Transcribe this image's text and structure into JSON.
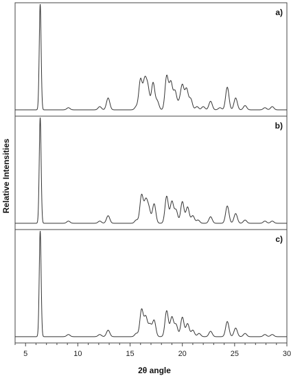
{
  "chart_data": {
    "type": "line",
    "xlabel": "2θ angle",
    "ylabel": "Relative Intensities",
    "xlim": [
      4,
      30
    ],
    "x_ticks": [
      5,
      10,
      15,
      20,
      25,
      30
    ],
    "x_tick_labels": [
      "5",
      "10",
      "15",
      "20",
      "25",
      "30"
    ],
    "grid": false,
    "legend": "none",
    "line_color": "#333333",
    "panels": [
      {
        "label": "a)",
        "ylim": [
          0,
          100
        ],
        "baseline": 2,
        "peaks": [
          {
            "x": 6.4,
            "y": 100
          },
          {
            "x": 9.1,
            "y": 4
          },
          {
            "x": 12.1,
            "y": 5
          },
          {
            "x": 12.9,
            "y": 13
          },
          {
            "x": 15.6,
            "y": 5
          },
          {
            "x": 16.0,
            "y": 30
          },
          {
            "x": 16.4,
            "y": 28
          },
          {
            "x": 16.7,
            "y": 22
          },
          {
            "x": 17.2,
            "y": 27
          },
          {
            "x": 17.6,
            "y": 10
          },
          {
            "x": 18.5,
            "y": 33
          },
          {
            "x": 18.9,
            "y": 27
          },
          {
            "x": 19.3,
            "y": 19
          },
          {
            "x": 19.7,
            "y": 8
          },
          {
            "x": 20.0,
            "y": 24
          },
          {
            "x": 20.4,
            "y": 21
          },
          {
            "x": 20.8,
            "y": 12
          },
          {
            "x": 21.4,
            "y": 5
          },
          {
            "x": 22.0,
            "y": 5
          },
          {
            "x": 22.7,
            "y": 10
          },
          {
            "x": 23.6,
            "y": 4
          },
          {
            "x": 24.3,
            "y": 23
          },
          {
            "x": 25.1,
            "y": 13
          },
          {
            "x": 26.0,
            "y": 6
          },
          {
            "x": 27.9,
            "y": 4
          },
          {
            "x": 28.6,
            "y": 5
          }
        ]
      },
      {
        "label": "b)",
        "ylim": [
          0,
          100
        ],
        "baseline": 2,
        "peaks": [
          {
            "x": 6.4,
            "y": 100
          },
          {
            "x": 9.1,
            "y": 4
          },
          {
            "x": 12.1,
            "y": 4
          },
          {
            "x": 12.9,
            "y": 9
          },
          {
            "x": 15.6,
            "y": 5
          },
          {
            "x": 16.1,
            "y": 28
          },
          {
            "x": 16.5,
            "y": 22
          },
          {
            "x": 16.8,
            "y": 15
          },
          {
            "x": 17.3,
            "y": 20
          },
          {
            "x": 18.5,
            "y": 27
          },
          {
            "x": 19.0,
            "y": 22
          },
          {
            "x": 19.4,
            "y": 14
          },
          {
            "x": 20.0,
            "y": 22
          },
          {
            "x": 20.5,
            "y": 17
          },
          {
            "x": 21.0,
            "y": 9
          },
          {
            "x": 21.5,
            "y": 5
          },
          {
            "x": 22.7,
            "y": 8
          },
          {
            "x": 24.3,
            "y": 18
          },
          {
            "x": 25.1,
            "y": 11
          },
          {
            "x": 26.0,
            "y": 5
          },
          {
            "x": 27.9,
            "y": 4
          },
          {
            "x": 28.6,
            "y": 4
          }
        ]
      },
      {
        "label": "c)",
        "ylim": [
          0,
          100
        ],
        "baseline": 2,
        "peaks": [
          {
            "x": 6.4,
            "y": 100
          },
          {
            "x": 9.1,
            "y": 4
          },
          {
            "x": 12.1,
            "y": 4
          },
          {
            "x": 12.9,
            "y": 8
          },
          {
            "x": 15.6,
            "y": 5
          },
          {
            "x": 16.1,
            "y": 27
          },
          {
            "x": 16.5,
            "y": 20
          },
          {
            "x": 16.9,
            "y": 13
          },
          {
            "x": 17.3,
            "y": 17
          },
          {
            "x": 18.5,
            "y": 26
          },
          {
            "x": 19.0,
            "y": 20
          },
          {
            "x": 19.4,
            "y": 13
          },
          {
            "x": 20.0,
            "y": 20
          },
          {
            "x": 20.5,
            "y": 14
          },
          {
            "x": 21.0,
            "y": 8
          },
          {
            "x": 21.6,
            "y": 5
          },
          {
            "x": 22.7,
            "y": 7
          },
          {
            "x": 24.3,
            "y": 16
          },
          {
            "x": 25.1,
            "y": 10
          },
          {
            "x": 26.0,
            "y": 5
          },
          {
            "x": 27.9,
            "y": 4
          },
          {
            "x": 28.6,
            "y": 4
          }
        ]
      }
    ]
  }
}
